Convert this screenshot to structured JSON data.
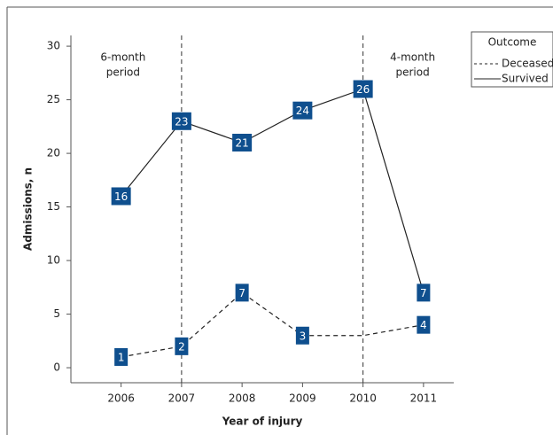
{
  "chart_data": {
    "type": "line",
    "xlabel": "Year of injury",
    "ylabel": "Admissions, n",
    "x": [
      2006,
      2007,
      2008,
      2009,
      2010,
      2011
    ],
    "xlim": [
      2005.17,
      2011.5
    ],
    "xticks": [
      2006,
      2007,
      2008,
      2009,
      2010,
      2011
    ],
    "ylim": [
      -1.4,
      31
    ],
    "yticks": [
      0,
      5,
      10,
      15,
      20,
      25,
      30
    ],
    "series": [
      {
        "name": "Deceased",
        "color": "#222222",
        "dash": true,
        "values": [
          1,
          2,
          7,
          3,
          3,
          4
        ],
        "value_labels": [
          "1",
          "2",
          "7",
          "3",
          null,
          "4"
        ]
      },
      {
        "name": "Survived",
        "color": "#222222",
        "dash": false,
        "values": [
          16,
          23,
          21,
          24,
          26,
          7
        ]
      }
    ],
    "label_color": "#0f4f8e",
    "legend_title": "Outcome",
    "legend": "top-right",
    "reference_lines": [
      2007,
      2010
    ],
    "annotations": [
      [
        "6-month",
        "period"
      ],
      [
        "4-month",
        "period"
      ]
    ]
  }
}
